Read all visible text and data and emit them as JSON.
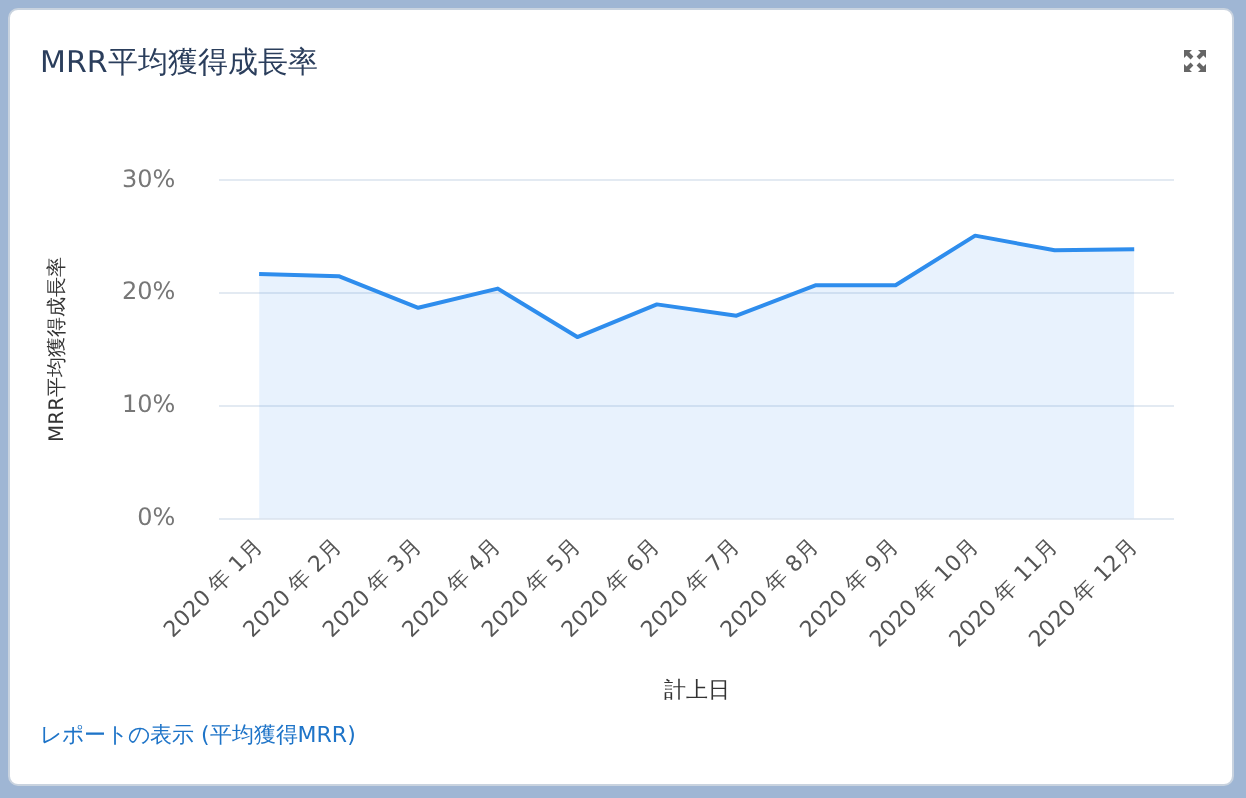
{
  "chart_data": {
    "type": "area",
    "title": "MRR平均獲得成長率",
    "xlabel": "計上日",
    "ylabel": "MRR平均獲得成長率",
    "categories": [
      "2020 年 1月",
      "2020 年 2月",
      "2020 年 3月",
      "2020 年 4月",
      "2020 年 5月",
      "2020 年 6月",
      "2020 年 7月",
      "2020 年 8月",
      "2020 年 9月",
      "2020 年 10月",
      "2020 年 11月",
      "2020 年 12月"
    ],
    "series": [
      {
        "color": "#2e8ded",
        "values": [
          21.7,
          21.5,
          18.7,
          20.4,
          16.1,
          19.0,
          18.0,
          20.7,
          20.7,
          25.1,
          23.8,
          23.9
        ]
      }
    ],
    "ylim": [
      0,
      30
    ],
    "yticks": [
      {
        "value": 0,
        "label": "0%"
      },
      {
        "value": 10,
        "label": "10%"
      },
      {
        "value": 20,
        "label": "20%"
      },
      {
        "value": 30,
        "label": "30%"
      }
    ],
    "grid": "y",
    "marker": "none",
    "line_style": "solid",
    "legend": false,
    "annotations": [
      "レポートの表示 (平均獲得MRR)"
    ]
  }
}
